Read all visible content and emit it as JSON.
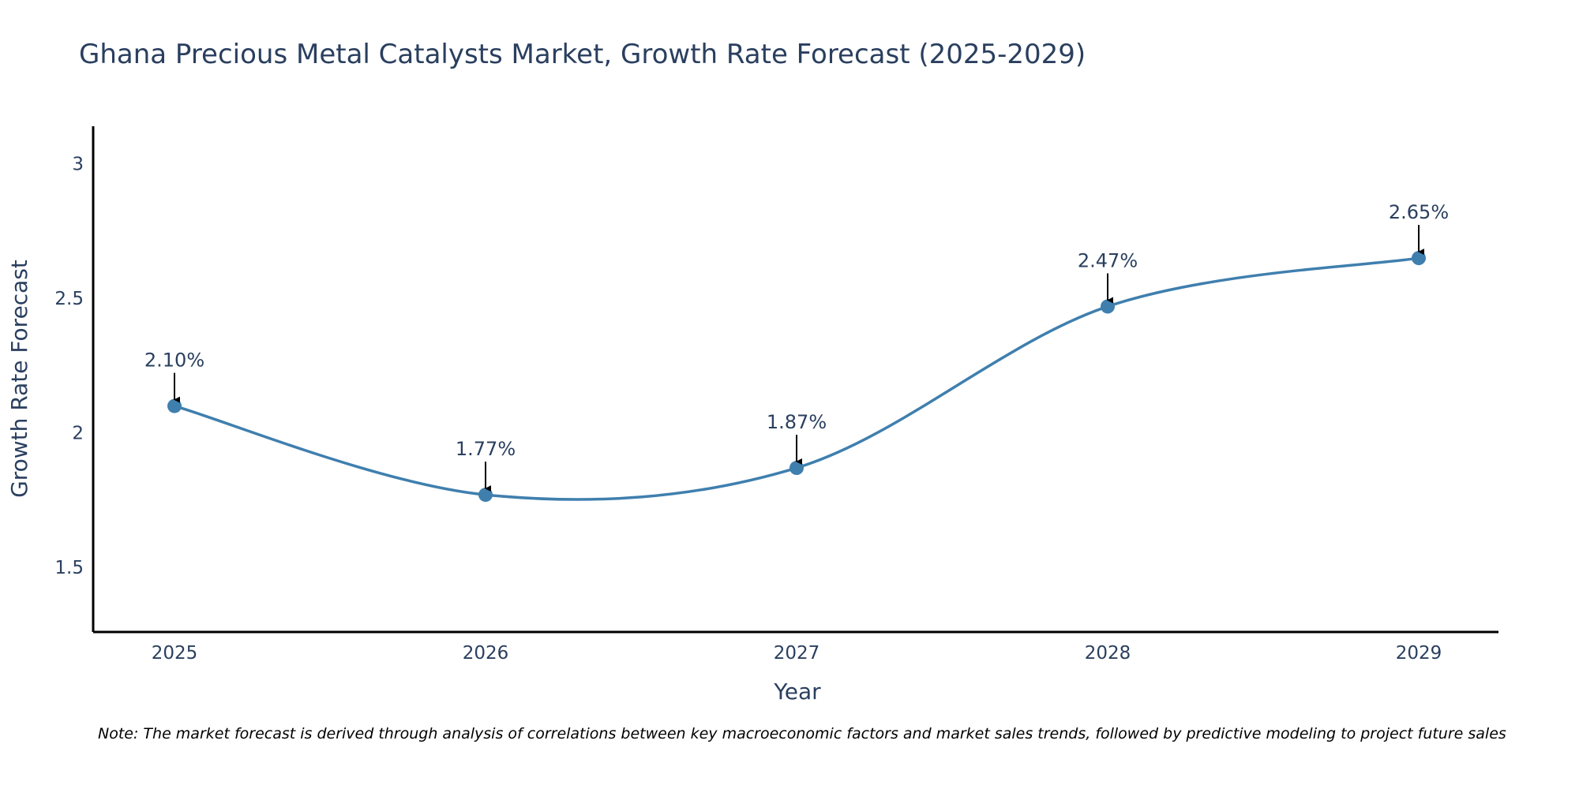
{
  "chart_data": {
    "type": "line",
    "title": "Ghana Precious Metal Catalysts Market, Growth Rate Forecast (2025-2029)",
    "xlabel": "Year",
    "ylabel": "Growth Rate Forecast",
    "categories": [
      "2025",
      "2026",
      "2027",
      "2028",
      "2029"
    ],
    "values": [
      2.1,
      1.77,
      1.87,
      2.47,
      2.65
    ],
    "data_labels": [
      "2.10%",
      "1.77%",
      "1.87%",
      "2.47%",
      "2.65%"
    ],
    "ylim": [
      1.26,
      3.14
    ],
    "yticks": [
      1.5,
      2,
      2.5,
      3
    ],
    "ytick_labels": [
      "1.5",
      "2",
      "2.5",
      "3"
    ],
    "grid": false,
    "line_shape": "spline",
    "note": "Note: The market forecast is derived through analysis of correlations between key macroeconomic factors and market sales trends, followed by predictive modeling to project future sales"
  },
  "colors": {
    "line": "#3f7fae",
    "marker": "#3f7fae",
    "arrow": "#000000",
    "axis": "#000000",
    "text": "#2a3f5f"
  }
}
